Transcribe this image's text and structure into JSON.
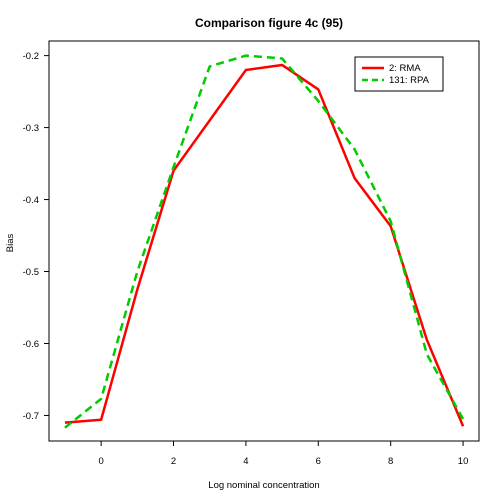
{
  "chart_data": {
    "type": "line",
    "title": "Comparison figure 4c (95)",
    "xlabel": "Log nominal concentration",
    "ylabel": "Bias",
    "xlim": [
      -1.44,
      10.44
    ],
    "ylim": [
      -0.7355,
      -0.1797
    ],
    "xticks": [
      0,
      2,
      4,
      6,
      8,
      10
    ],
    "yticks": [
      -0.7,
      -0.6,
      -0.5,
      -0.4,
      -0.3,
      -0.2
    ],
    "grid": false,
    "legend_position": "top-right",
    "series": [
      {
        "name": "2: RMA",
        "color": "#ff0000",
        "dash": "solid",
        "x": [
          -1,
          0,
          1,
          2,
          3,
          4,
          5,
          6,
          7,
          8,
          9,
          10
        ],
        "y": [
          -0.71,
          -0.706,
          -0.525,
          -0.36,
          -0.29,
          -0.22,
          -0.213,
          -0.247,
          -0.37,
          -0.437,
          -0.595,
          -0.715
        ]
      },
      {
        "name": "131: RPA",
        "color": "#00cc00",
        "dash": "dashed",
        "x": [
          -1,
          0,
          1,
          2,
          3,
          4,
          5,
          6,
          7,
          8,
          9,
          10
        ],
        "y": [
          -0.717,
          -0.677,
          -0.5,
          -0.355,
          -0.215,
          -0.2,
          -0.204,
          -0.263,
          -0.33,
          -0.43,
          -0.615,
          -0.705
        ]
      }
    ]
  }
}
